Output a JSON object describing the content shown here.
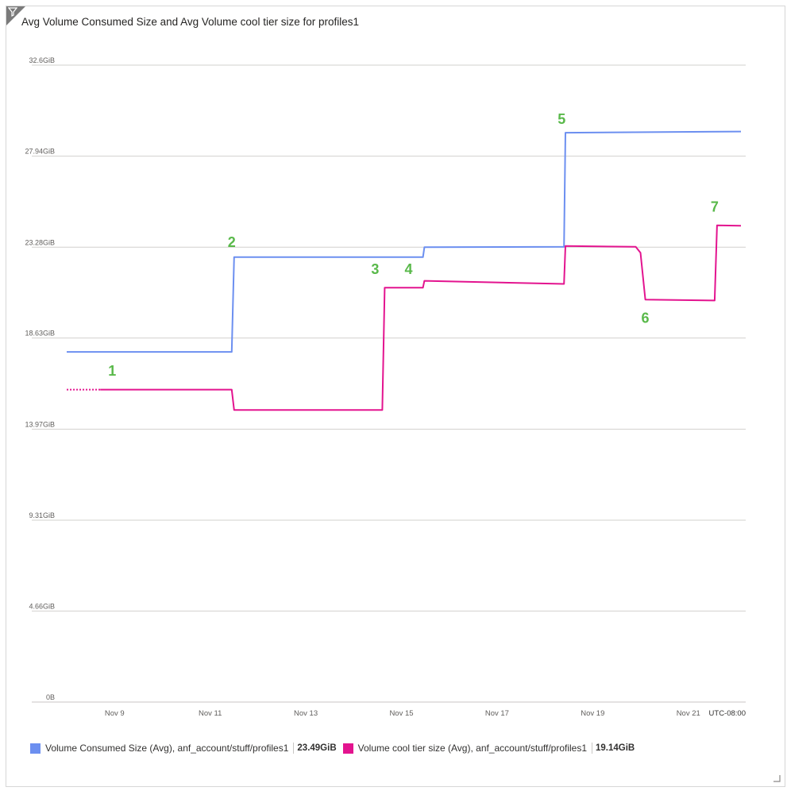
{
  "title": "Avg Volume Consumed Size and Avg Volume cool tier size for profiles1",
  "timezone": "UTC-08:00",
  "icons": {
    "filter": "filter-icon",
    "resize": "resize-corner-icon"
  },
  "colors": {
    "consumed": "#6c8ff0",
    "cool": "#e3148f",
    "annotation": "#59b94a"
  },
  "chart_data": {
    "type": "line",
    "title": "Avg Volume Consumed Size and Avg Volume cool tier size for profiles1",
    "x_unit": "day of November",
    "x_ticks": [
      "Nov 9",
      "Nov 11",
      "Nov 13",
      "Nov 15",
      "Nov 17",
      "Nov 19",
      "Nov 21"
    ],
    "x_tick_values": [
      9,
      11,
      13,
      15,
      17,
      19,
      21
    ],
    "xlim": [
      7.8,
      22.2
    ],
    "y_ticks": [
      "0B",
      "4.66GiB",
      "9.31GiB",
      "13.97GiB",
      "18.63GiB",
      "23.28GiB",
      "27.94GiB",
      "32.6GiB"
    ],
    "y_tick_values": [
      0,
      4.66,
      9.31,
      13.97,
      18.63,
      23.28,
      27.94,
      32.6
    ],
    "ylim": [
      0,
      32.6
    ],
    "grid": true,
    "legend_position": "bottom",
    "series": [
      {
        "name": "Volume Consumed Size (Avg), anf_account/stuff/profiles1",
        "summary": "23.49GiB",
        "color": "#6c8ff0",
        "points": [
          [
            8.0,
            17.92
          ],
          [
            11.45,
            17.92
          ],
          [
            11.5,
            22.77
          ],
          [
            15.45,
            22.77
          ],
          [
            15.48,
            23.28
          ],
          [
            18.4,
            23.3
          ],
          [
            18.43,
            29.14
          ],
          [
            22.1,
            29.2
          ]
        ]
      },
      {
        "name": "Volume cool tier size (Avg), anf_account/stuff/profiles1",
        "summary": "19.14GiB",
        "color": "#e3148f",
        "dashed_until": 8.7,
        "points": [
          [
            8.0,
            15.99
          ],
          [
            11.45,
            15.99
          ],
          [
            11.5,
            14.95
          ],
          [
            14.6,
            14.95
          ],
          [
            14.65,
            21.21
          ],
          [
            15.45,
            21.21
          ],
          [
            15.48,
            21.56
          ],
          [
            18.4,
            21.4
          ],
          [
            18.43,
            23.34
          ],
          [
            19.9,
            23.3
          ],
          [
            20.0,
            23.0
          ],
          [
            20.1,
            20.6
          ],
          [
            21.55,
            20.55
          ],
          [
            21.6,
            24.4
          ],
          [
            22.1,
            24.38
          ]
        ]
      }
    ],
    "annotations": [
      {
        "label": "1",
        "x": 8.95,
        "y": 16.7
      },
      {
        "label": "2",
        "x": 11.45,
        "y": 23.3
      },
      {
        "label": "3",
        "x": 14.45,
        "y": 21.9
      },
      {
        "label": "4",
        "x": 15.15,
        "y": 21.9
      },
      {
        "label": "5",
        "x": 18.35,
        "y": 29.6
      },
      {
        "label": "6",
        "x": 20.1,
        "y": 19.4
      },
      {
        "label": "7",
        "x": 21.55,
        "y": 25.1
      }
    ]
  },
  "legend": [
    {
      "label": "Volume Consumed Size (Avg), anf_account/stuff/profiles1",
      "value": "23.49GiB",
      "color": "#6c8ff0"
    },
    {
      "label": "Volume cool tier size (Avg), anf_account/stuff/profiles1",
      "value": "19.14GiB",
      "color": "#e3148f"
    }
  ]
}
